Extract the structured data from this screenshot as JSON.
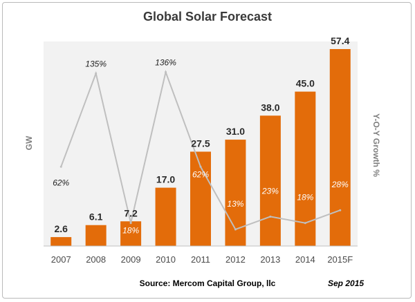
{
  "chart_data": {
    "type": "bar",
    "title": "Global Solar Forecast",
    "ylabel": "GW",
    "y2label": "Y-O-Y Growth %",
    "categories": [
      "2007",
      "2008",
      "2009",
      "2010",
      "2011",
      "2012",
      "2013",
      "2014",
      "2015F"
    ],
    "series": [
      {
        "type": "bar",
        "values": [
          2.6,
          6.1,
          7.2,
          17.0,
          27.5,
          31.0,
          38.0,
          45.0,
          57.4
        ],
        "value_labels": [
          "2.6",
          "6.1",
          "7.2",
          "17.0",
          "27.5",
          "31.0",
          "38.0",
          "45.0",
          "57.4"
        ],
        "color": "#e36c0a"
      },
      {
        "type": "line",
        "axis": "secondary",
        "values": [
          62,
          135,
          18,
          136,
          62,
          13,
          23,
          18,
          28
        ],
        "value_labels": [
          "62%",
          "135%",
          "18%",
          "136%",
          "62%",
          "13%",
          "23%",
          "18%",
          "28%"
        ],
        "color": "#bfbfbf"
      }
    ],
    "ylim": [
      0,
      60
    ],
    "y2lim": [
      0,
      160
    ],
    "grid": false,
    "legend": "none"
  },
  "footer": {
    "source": "Source: Mercom Capital Group, llc",
    "date": "Sep 2015"
  }
}
